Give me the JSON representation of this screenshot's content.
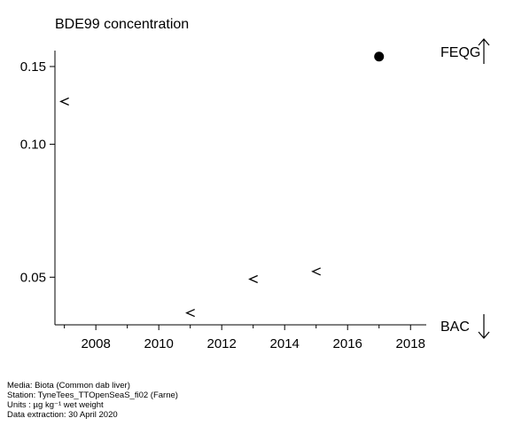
{
  "chart_data": {
    "type": "scatter",
    "title": "BDE99 concentration",
    "xlabel": "",
    "ylabel": "",
    "xlim": [
      2006.7,
      2018.5
    ],
    "ylim": [
      0.039,
      0.163
    ],
    "y_scale": "log",
    "x_ticks": [
      2008,
      2010,
      2012,
      2014,
      2016,
      2018
    ],
    "x_minor_ticks": [
      2007,
      2009,
      2011,
      2013,
      2015,
      2017
    ],
    "y_ticks": [
      0.05,
      0.1,
      0.15
    ],
    "y_tick_labels": [
      "0.05",
      "0.10",
      "0.15"
    ],
    "grid": false,
    "series": [
      {
        "marker": "less-than",
        "points": [
          {
            "x": 2007,
            "y": 0.125
          },
          {
            "x": 2011,
            "y": 0.0415
          },
          {
            "x": 2013,
            "y": 0.0495
          },
          {
            "x": 2015,
            "y": 0.0515
          }
        ]
      },
      {
        "marker": "filled-circle",
        "points": [
          {
            "x": 2017,
            "y": 0.158
          }
        ]
      }
    ],
    "reference_lines": [
      {
        "label": "FEQG",
        "arrow": "up"
      },
      {
        "label": "BAC",
        "arrow": "down"
      }
    ]
  },
  "footer": {
    "media": "Media: Biota (Common dab liver)",
    "station": "Station: TyneTees_TTOpenSeaS_fi02 (Farne)",
    "units": "Units : µg kg⁻¹ wet weight",
    "extraction": "Data extraction: 30 April 2020"
  }
}
